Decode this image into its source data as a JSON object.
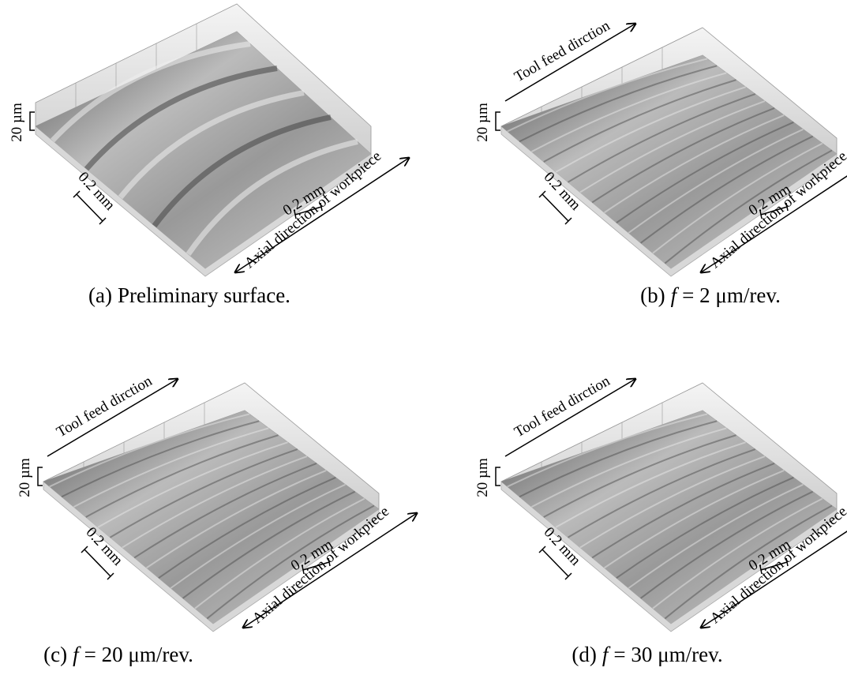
{
  "panels": [
    {
      "caption": {
        "label": "(a)",
        "text": "Preliminary surface."
      },
      "z_scale": "20 µm",
      "x_scale": "0.2 mm",
      "y_scale": "0.2 mm",
      "axial_direction": "Axial direction of workpiece"
    },
    {
      "caption": {
        "label": "(b)",
        "variable": "f",
        "text": "= 2 μm/rev."
      },
      "z_scale": "20 µm",
      "x_scale": "0.2 mm",
      "y_scale": "0.2 mm",
      "axial_direction": "Axial direction of workpiece",
      "feed_direction": "Tool feed dirction"
    },
    {
      "caption": {
        "label": "(c)",
        "variable": "f",
        "text": "= 20 μm/rev."
      },
      "z_scale": "20 µm",
      "x_scale": "0.2 mm",
      "y_scale": "0.2 mm",
      "axial_direction": "Axial direction of workpiece",
      "feed_direction": "Tool feed dirction"
    },
    {
      "caption": {
        "label": "(d)",
        "variable": "f",
        "text": "= 30 μm/rev."
      },
      "z_scale": "20 µm",
      "x_scale": "0.2 mm",
      "y_scale": "0.2 mm",
      "axial_direction": "Axial direction of workpiece",
      "feed_direction": "Tool feed dirction"
    }
  ]
}
